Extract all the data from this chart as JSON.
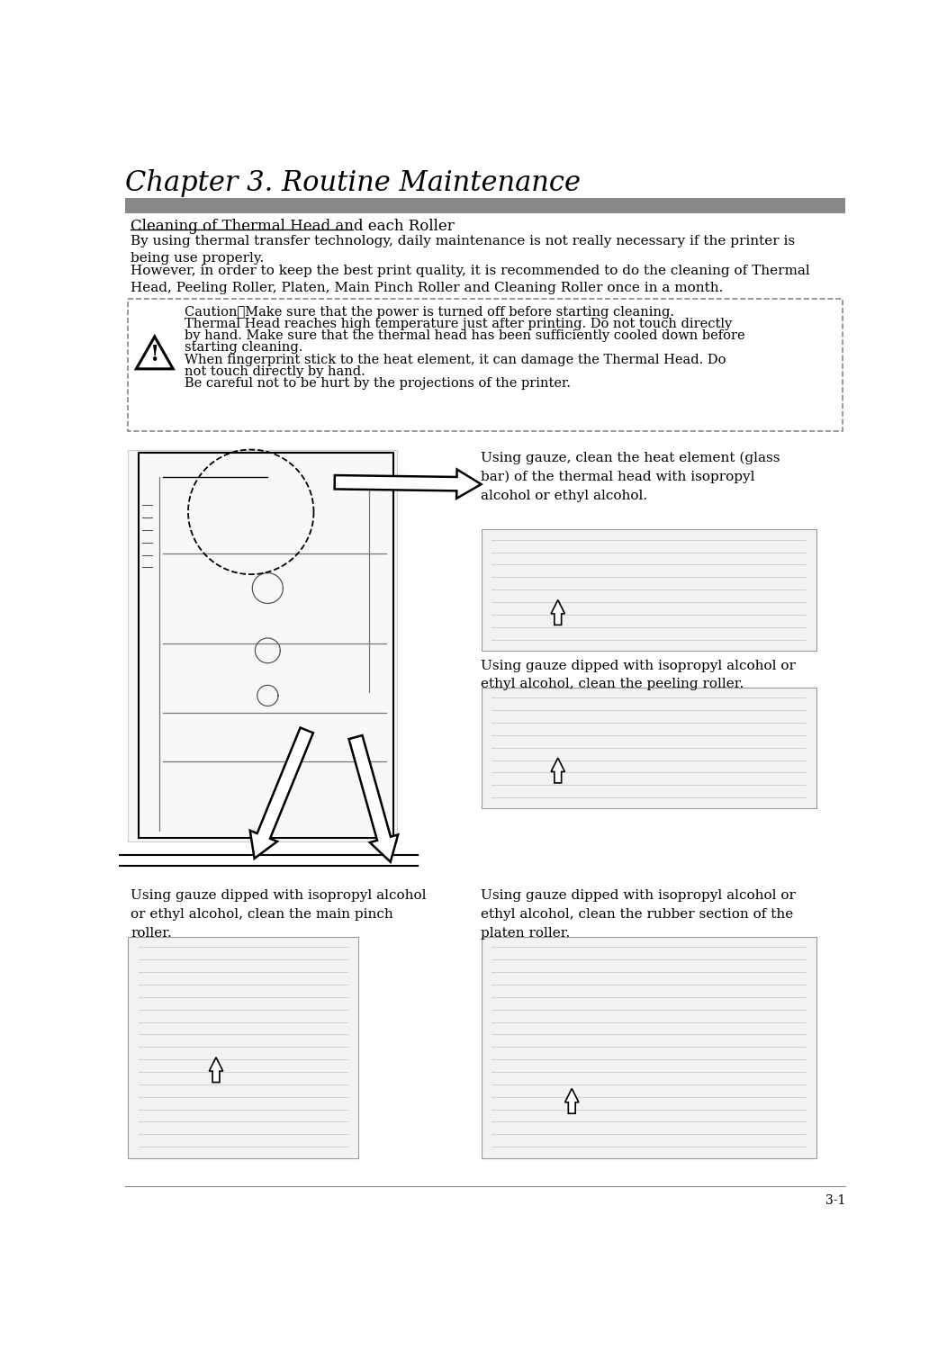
{
  "title": "Chapter 3. Routine Maintenance",
  "section_title": "Cleaning of Thermal Head and each Roller",
  "intro_text1": "By using thermal transfer technology, daily maintenance is not really necessary if the printer is\nbeing use properly.",
  "intro_text2": "However, in order to keep the best print quality, it is recommended to do the cleaning of Thermal\nHead, Peeling Roller, Platen, Main Pinch Roller and Cleaning Roller once in a month.",
  "caution_lines": [
    "Caution：Make sure that the power is turned off before starting cleaning.",
    "Thermal Head reaches high temperature just after printing. Do not touch directly",
    "by hand. Make sure that the thermal head has been sufficiently cooled down before",
    "starting cleaning.",
    "When fingerprint stick to the heat element, it can damage the Thermal Head. Do",
    "not touch directly by hand.",
    "Be careful not to be hurt by the projections of the printer."
  ],
  "text_top_right1": "Using gauze, clean the heat element (glass\nbar) of the thermal head with isopropyl\nalcohol or ethyl alcohol.",
  "text_mid_right1": "Using gauze dipped with isopropyl alcohol or\nethyl alcohol, clean the peeling roller.",
  "text_bot_left": "Using gauze dipped with isopropyl alcohol\nor ethyl alcohol, clean the main pinch\nroller.",
  "text_bot_right": "Using gauze dipped with isopropyl alcohol or\nethyl alcohol, clean the rubber section of the\nplaten roller.",
  "page_number": "3-1",
  "bg_color": "#ffffff",
  "text_color": "#000000",
  "header_bar_color": "#888888",
  "caution_box_border": "#888888",
  "title_fontsize": 22,
  "section_title_fontsize": 12,
  "body_fontsize": 11,
  "caution_fontsize": 10.5,
  "page_num_fontsize": 10
}
